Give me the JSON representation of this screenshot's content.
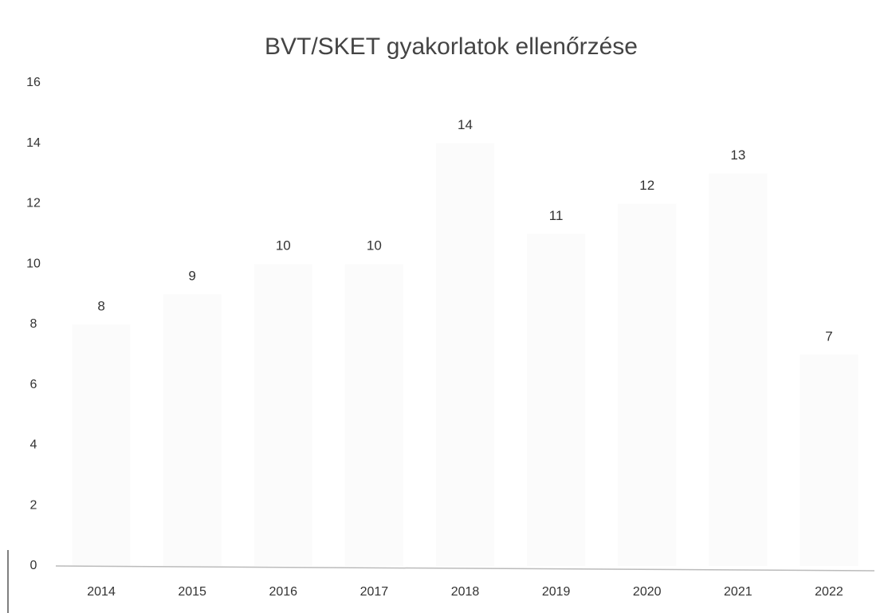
{
  "chart_data": {
    "type": "bar",
    "title": "BVT/SKET gyakorlatok ellenőrzése",
    "categories": [
      "2014",
      "2015",
      "2016",
      "2017",
      "2018",
      "2019",
      "2020",
      "2021",
      "2022"
    ],
    "values": [
      8,
      9,
      10,
      10,
      14,
      11,
      12,
      13,
      7
    ],
    "color": "#fbfbfb",
    "ylim": [
      0,
      16
    ],
    "yticks": [
      0,
      2,
      4,
      6,
      8,
      10,
      12,
      14,
      16
    ],
    "grid": false
  }
}
